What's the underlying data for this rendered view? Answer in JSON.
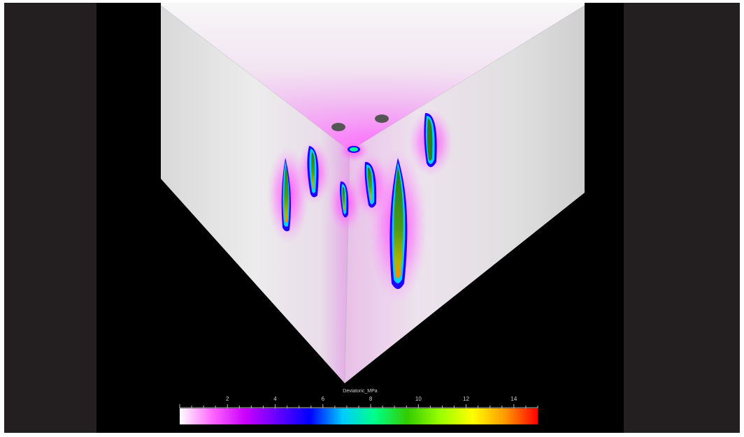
{
  "colorbar": {
    "title": "Deviatoric_MPa",
    "ticks": [
      "2",
      "4",
      "6",
      "8",
      "10",
      "12",
      "14"
    ],
    "min": 0,
    "max": 15,
    "colors": [
      "#ffffff",
      "#ff66ff",
      "#cc00ff",
      "#6600ff",
      "#0000ff",
      "#00ccff",
      "#00ff88",
      "#33cc00",
      "#99ff00",
      "#ffff00",
      "#ff9900",
      "#ff0000"
    ]
  }
}
